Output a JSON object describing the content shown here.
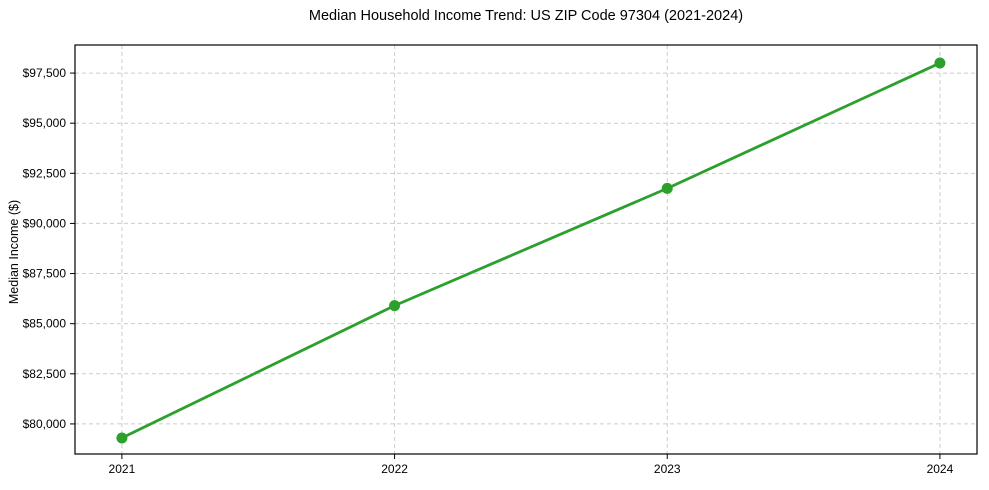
{
  "chart_data": {
    "type": "line",
    "title": "Median Household Income Trend: US ZIP Code 97304 (2021-2024)",
    "xlabel": "",
    "ylabel": "Median Income ($)",
    "x": [
      2021,
      2022,
      2023,
      2024
    ],
    "series": [
      {
        "name": "Median Household Income",
        "values": [
          79300,
          85900,
          91750,
          98000
        ]
      }
    ],
    "x_tick_labels": [
      "2021",
      "2022",
      "2023",
      "2024"
    ],
    "y_ticks": [
      80000,
      82500,
      85000,
      87500,
      90000,
      92500,
      95000,
      97500
    ],
    "y_tick_labels": [
      "$80,000",
      "$82,500",
      "$85,000",
      "$87,500",
      "$90,000",
      "$92,500",
      "$95,000",
      "$97,500"
    ],
    "xlim": [
      2020.828,
      2024.136
    ],
    "ylim": [
      78500,
      98900
    ],
    "grid": true,
    "grid_style": "dashed",
    "legend": "none",
    "line_color": "#2ca02c",
    "marker_color": "#2ca02c",
    "grid_color": "#cccccc",
    "spine_color": "#000000",
    "background_color": "#ffffff"
  }
}
